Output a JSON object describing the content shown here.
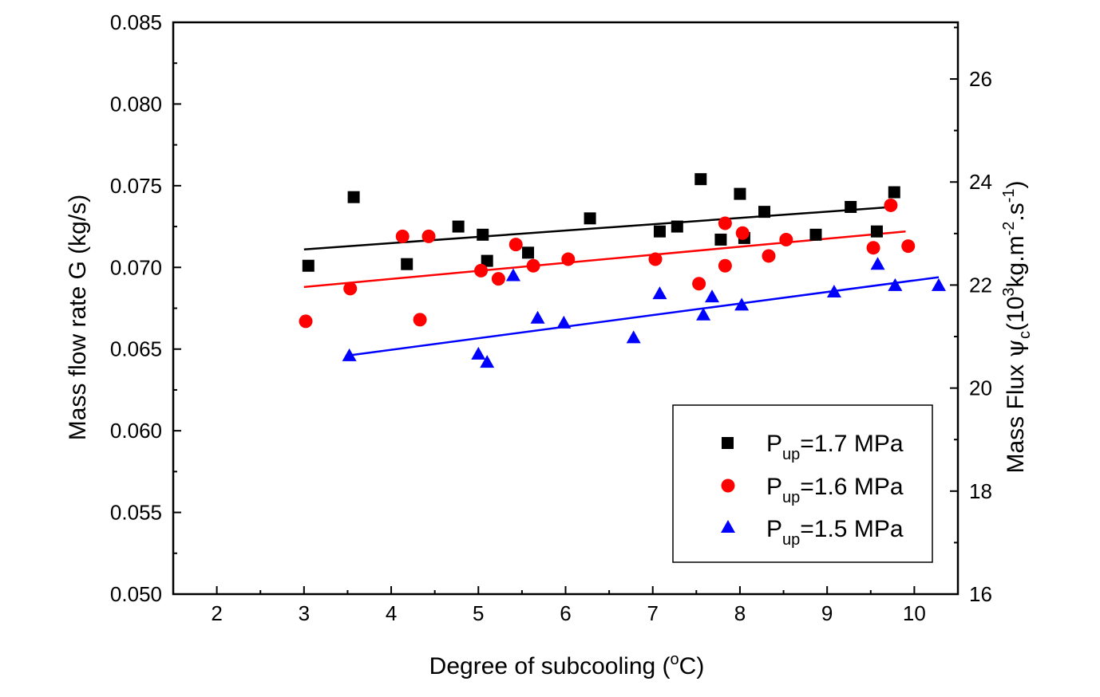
{
  "chart_data": {
    "type": "scatter",
    "title": "",
    "xlabel": {
      "main": "Degree of subcooling (",
      "sup": "o",
      "unit": "C)"
    },
    "ylabel": "Mass flow rate G (kg/s)",
    "y2label": {
      "p1": "Mass Flux ",
      "psi": "ψ",
      "sub": "c",
      "p2": "(10",
      "sup1": "3",
      "p3": "kg.m",
      "sup2": "-2",
      "p4": ".s",
      "sup3": "-1",
      "p5": ")"
    },
    "xlim": [
      1.5,
      10.5
    ],
    "ylim": [
      0.05,
      0.085
    ],
    "y2lim": [
      16,
      27.1
    ],
    "xticks": [
      "2",
      "3",
      "4",
      "5",
      "6",
      "7",
      "8",
      "9",
      "10"
    ],
    "xtick_values": [
      2,
      3,
      4,
      5,
      6,
      7,
      8,
      9,
      10
    ],
    "yticks": [
      "0.050",
      "0.055",
      "0.060",
      "0.065",
      "0.070",
      "0.075",
      "0.080",
      "0.085"
    ],
    "ytick_values": [
      0.05,
      0.055,
      0.06,
      0.065,
      0.07,
      0.075,
      0.08,
      0.085
    ],
    "y2ticks": [
      "16",
      "18",
      "20",
      "22",
      "24",
      "26"
    ],
    "y2tick_values": [
      16,
      18,
      20,
      22,
      24,
      26
    ],
    "legend_position": "bottom-right",
    "series": [
      {
        "name": "Pup=1.7 MPa",
        "label_main": "P",
        "label_sub": "up",
        "label_rest": "=1.7 MPa",
        "marker": "square",
        "color": "#000000",
        "x": [
          3.05,
          3.57,
          4.18,
          4.77,
          5.05,
          5.1,
          5.57,
          6.28,
          7.08,
          7.28,
          7.55,
          7.78,
          8.0,
          8.05,
          8.28,
          8.87,
          9.27,
          9.57,
          9.77
        ],
        "y": [
          0.0701,
          0.0743,
          0.0702,
          0.0725,
          0.072,
          0.0704,
          0.0709,
          0.073,
          0.0722,
          0.0725,
          0.0754,
          0.0717,
          0.0745,
          0.0718,
          0.0734,
          0.072,
          0.0737,
          0.0722,
          0.0746
        ],
        "fit": {
          "x": [
            3.0,
            9.75
          ],
          "y": [
            0.0711,
            0.0737
          ]
        }
      },
      {
        "name": "Pup=1.6 MPa",
        "label_main": "P",
        "label_sub": "up",
        "label_rest": "=1.6 MPa",
        "marker": "circle",
        "color": "#ff0000",
        "x": [
          3.02,
          3.53,
          4.13,
          4.33,
          4.43,
          5.03,
          5.23,
          5.43,
          5.63,
          6.03,
          7.03,
          7.53,
          7.83,
          7.83,
          8.03,
          8.33,
          8.53,
          9.53,
          9.73,
          9.93
        ],
        "y": [
          0.0667,
          0.0687,
          0.0719,
          0.0668,
          0.0719,
          0.0698,
          0.0693,
          0.0714,
          0.0701,
          0.0705,
          0.0705,
          0.069,
          0.0701,
          0.0727,
          0.0721,
          0.0707,
          0.0717,
          0.0712,
          0.0738,
          0.0713
        ],
        "fit": {
          "x": [
            3.0,
            9.9
          ],
          "y": [
            0.0688,
            0.0722
          ]
        }
      },
      {
        "name": "Pup=1.5 MPa",
        "label_main": "P",
        "label_sub": "up",
        "label_rest": "=1.5 MPa",
        "marker": "triangle",
        "color": "#0000ff",
        "x": [
          3.52,
          5.0,
          5.1,
          5.4,
          5.68,
          5.98,
          6.78,
          7.08,
          7.58,
          7.68,
          8.02,
          9.08,
          9.58,
          9.78,
          10.28
        ],
        "y": [
          0.0646,
          0.0647,
          0.0642,
          0.0695,
          0.0669,
          0.0666,
          0.0657,
          0.0684,
          0.0671,
          0.0682,
          0.0677,
          0.0685,
          0.0702,
          0.0689,
          0.0689
        ],
        "fit": {
          "x": [
            3.5,
            10.28
          ],
          "y": [
            0.0646,
            0.0694
          ]
        }
      }
    ]
  }
}
